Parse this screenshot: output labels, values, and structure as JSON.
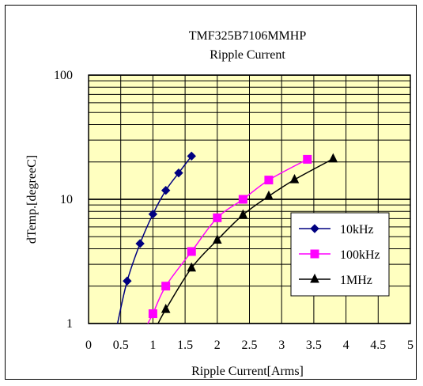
{
  "chart_data": {
    "type": "line",
    "title": "TMF325B7106MMHP",
    "subtitle": "Ripple Current",
    "xlabel": "Ripple Current[Arms]",
    "ylabel": "dTemp.[degreeC]",
    "xlim": [
      0,
      5
    ],
    "ylim": [
      1,
      100
    ],
    "yscale": "log",
    "x_ticks": [
      "0",
      "0.5",
      "1",
      "1.5",
      "2",
      "2.5",
      "3",
      "3.5",
      "4",
      "4.5",
      "5"
    ],
    "y_ticks": [
      "1",
      "10",
      "100"
    ],
    "grid": true,
    "legend_position": "right",
    "plot_background": "#ffffc0",
    "series": [
      {
        "name": "10kHz",
        "color": "#000080",
        "marker": "diamond",
        "x": [
          0.6,
          0.8,
          1.0,
          1.2,
          1.4,
          1.6
        ],
        "y": [
          2.2,
          4.4,
          7.6,
          11.8,
          16.3,
          22.3
        ],
        "curve_start": [
          0.45,
          1.0
        ]
      },
      {
        "name": "100kHz",
        "color": "#ff00ff",
        "marker": "square",
        "x": [
          1.0,
          1.2,
          1.6,
          2.0,
          2.4,
          2.8,
          3.4
        ],
        "y": [
          1.2,
          2.0,
          3.8,
          7.1,
          10.0,
          14.3,
          21.0
        ],
        "curve_start": [
          0.92,
          1.0
        ]
      },
      {
        "name": "1MHz",
        "color": "#000000",
        "marker": "triangle",
        "x": [
          1.2,
          1.6,
          2.0,
          2.4,
          2.8,
          3.2,
          3.8
        ],
        "y": [
          1.3,
          2.8,
          4.7,
          7.5,
          10.6,
          14.4,
          21.2
        ],
        "curve_start": [
          1.08,
          1.0
        ]
      }
    ]
  }
}
